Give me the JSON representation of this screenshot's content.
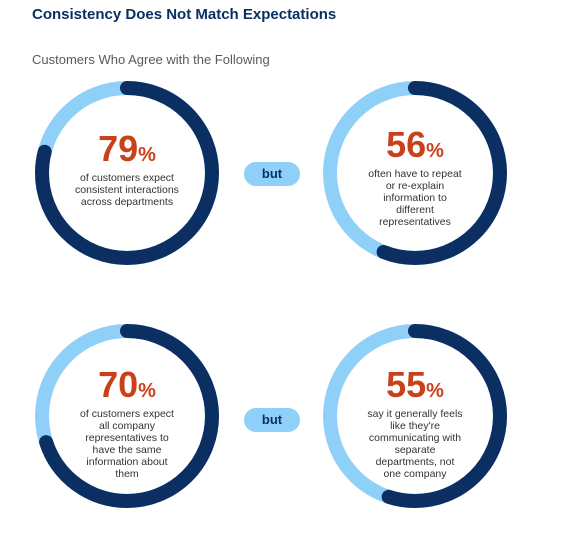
{
  "title": "Consistency Does Not Match Expectations",
  "subtitle": "Customers Who Agree with the Following",
  "colors": {
    "dark_ring": "#0b2f63",
    "light_ring": "#8fd0f8",
    "percent_text": "#c9411a",
    "title": "#0b2f63"
  },
  "connector_label": "but",
  "chart_data": {
    "type": "donut",
    "title": "Customers Who Agree with the Following",
    "items": [
      {
        "value": 79,
        "unit": "%",
        "text": "of customers expect consistent interactions across departments"
      },
      {
        "value": 56,
        "unit": "%",
        "text": "often have to repeat or re-explain information to different representatives"
      },
      {
        "value": 70,
        "unit": "%",
        "text": "of customers expect all company representatives to have the same information about them"
      },
      {
        "value": 55,
        "unit": "%",
        "text": "say it generally feels like they're communicating with separate departments, not one company"
      }
    ]
  }
}
